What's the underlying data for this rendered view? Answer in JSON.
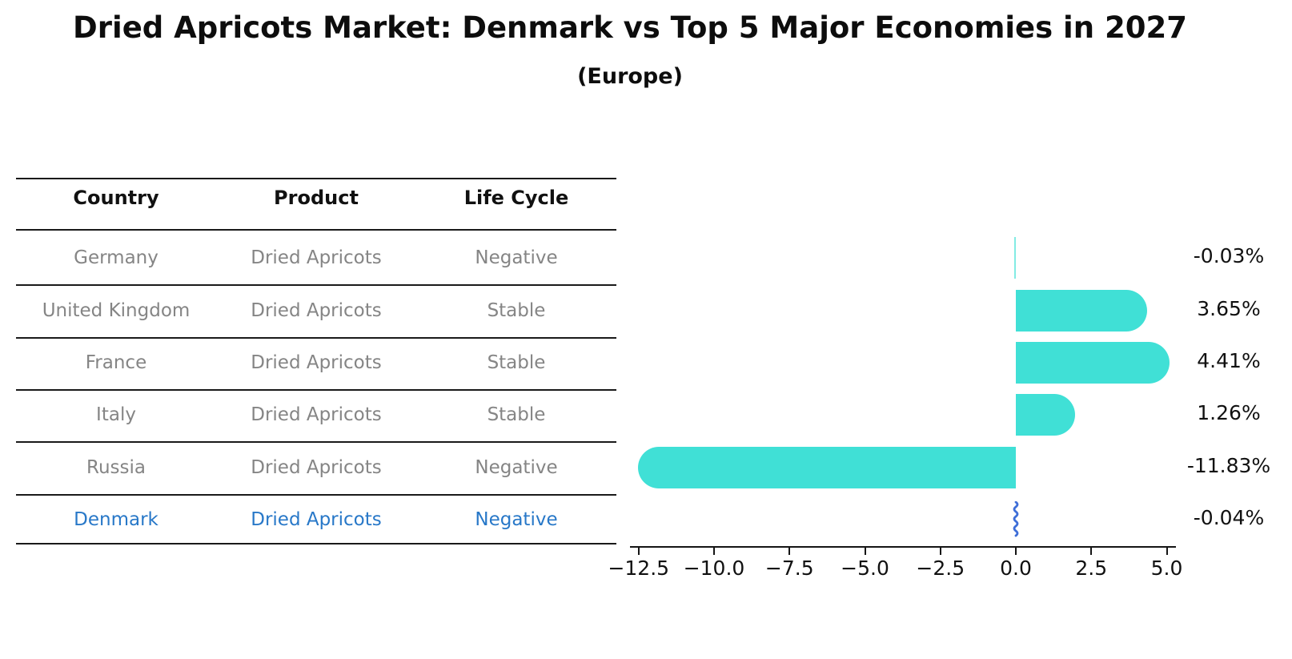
{
  "header": {
    "title": "Dried Apricots Market: Denmark vs Top 5 Major Economies in 2027",
    "subtitle": "(Europe)"
  },
  "table": {
    "headers": [
      "Country",
      "Product",
      "Life Cycle"
    ],
    "rows": [
      {
        "country": "Germany",
        "product": "Dried Apricots",
        "life_cycle": "Negative",
        "highlighted": false
      },
      {
        "country": "United Kingdom",
        "product": "Dried Apricots",
        "life_cycle": "Stable",
        "highlighted": false
      },
      {
        "country": "France",
        "product": "Dried Apricots",
        "life_cycle": "Stable",
        "highlighted": false
      },
      {
        "country": "Italy",
        "product": "Dried Apricots",
        "life_cycle": "Stable",
        "highlighted": false
      },
      {
        "country": "Russia",
        "product": "Dried Apricots",
        "life_cycle": "Negative",
        "highlighted": false
      },
      {
        "country": "Denmark",
        "product": "Dried Apricots",
        "life_cycle": "Negative",
        "highlighted": true
      }
    ]
  },
  "chart_data": {
    "type": "bar",
    "orientation": "horizontal",
    "title": "Dried Apricots Market: Denmark vs Top 5 Major Economies in 2027",
    "subtitle": "(Europe)",
    "categories": [
      "Germany",
      "United Kingdom",
      "France",
      "Italy",
      "Russia",
      "Denmark"
    ],
    "values": [
      -0.03,
      3.65,
      4.41,
      1.26,
      -11.83,
      -0.04
    ],
    "value_labels": [
      "-0.03%",
      "3.65%",
      "4.41%",
      "1.26%",
      "-11.83%",
      "-0.04%"
    ],
    "highlighted_category": "Denmark",
    "xlabel": "",
    "ylabel": "",
    "xlim": [
      -13,
      5.5
    ],
    "x_ticks": [
      -12.5,
      -10.0,
      -7.5,
      -5.0,
      -2.5,
      0.0,
      2.5,
      5.0
    ],
    "x_tick_labels": [
      "−12.5",
      "−10.0",
      "−7.5",
      "−5.0",
      "−2.5",
      "0.0",
      "2.5",
      "5.0"
    ],
    "grid": false,
    "legend": false,
    "bar_color": "#40E0D6",
    "highlight_color": "#3E6ED8",
    "text_color": "#111111",
    "muted_text_color": "#858585",
    "highlight_text_color": "#2878C8"
  }
}
